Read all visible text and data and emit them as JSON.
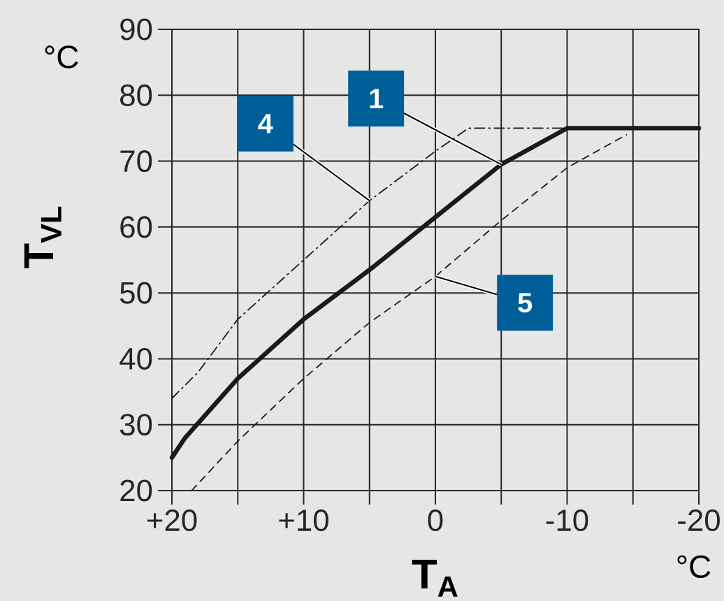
{
  "chart_data": {
    "type": "line",
    "xlabel": "T$_{A}$",
    "ylabel": "T$_{VL}$",
    "annotations": [
      "°C",
      "°C"
    ],
    "xlim": [
      20,
      -20
    ],
    "ylim": [
      20,
      90
    ],
    "xticks": [
      {
        "value": 20,
        "label": "+20"
      },
      {
        "value": 15,
        "label": null
      },
      {
        "value": 10,
        "label": "+10"
      },
      {
        "value": 5,
        "label": null
      },
      0,
      {
        "value": -5,
        "label": null
      },
      -10,
      {
        "value": -15,
        "label": null
      },
      -20
    ],
    "yticks": [
      20,
      30,
      40,
      50,
      60,
      70,
      80,
      90
    ],
    "grid": true,
    "legend": false,
    "series": [
      {
        "name": "1",
        "color": "#1a1a1a",
        "line_style": "solid",
        "x": [
          20,
          19,
          15,
          10,
          5,
          0,
          -5,
          -10,
          -20
        ],
        "values": [
          25,
          28,
          37,
          46,
          53.5,
          61.5,
          69.5,
          75,
          75
        ]
      },
      {
        "name": "4",
        "color": "#1a1a1a",
        "line_style": "dashdot",
        "x": [
          20,
          18,
          15,
          10,
          5,
          0,
          -2.5,
          -10
        ],
        "values": [
          34,
          38,
          46,
          55,
          64,
          71.5,
          75,
          75
        ]
      },
      {
        "name": "5",
        "color": "#1a1a1a",
        "line_style": "dashed",
        "x": [
          18.5,
          15,
          10,
          5,
          0,
          -5,
          -10,
          -14.5
        ],
        "values": [
          20,
          27.5,
          37,
          45.5,
          52.5,
          61,
          69,
          74
        ]
      }
    ]
  }
}
